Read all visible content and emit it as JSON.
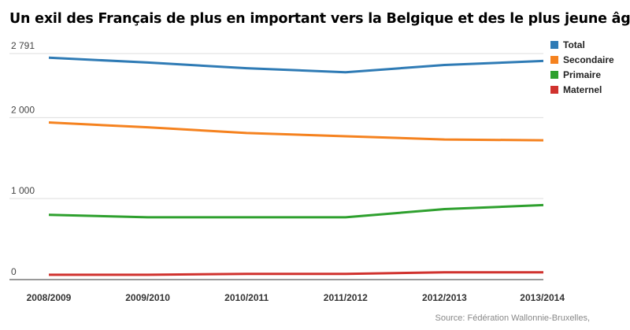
{
  "title": "Un exil des Français de plus en important vers la Belgique et des le plus jeune âge !",
  "source": "Source: Fédération Wallonnie-Bruxelles,",
  "chart_data": {
    "type": "line",
    "categories": [
      "2008/2009",
      "2009/2010",
      "2010/2011",
      "2011/2012",
      "2012/2013",
      "2013/2014"
    ],
    "ylim": [
      0,
      2791
    ],
    "yticks": [
      0,
      1000,
      2000,
      2791
    ],
    "ytick_labels": [
      "0",
      "1 000",
      "2 000",
      "2 791"
    ],
    "grid": true,
    "legend_position": "right",
    "series": [
      {
        "name": "Total",
        "color": "#2f7bb5",
        "values": [
          2740,
          2680,
          2610,
          2560,
          2650,
          2700
        ]
      },
      {
        "name": "Secondaire",
        "color": "#f5821f",
        "values": [
          1940,
          1880,
          1810,
          1770,
          1730,
          1720
        ]
      },
      {
        "name": "Primaire",
        "color": "#2ea02e",
        "values": [
          800,
          770,
          770,
          770,
          870,
          920
        ]
      },
      {
        "name": "Maternel",
        "color": "#d0322e",
        "values": [
          60,
          60,
          70,
          70,
          90,
          90
        ]
      }
    ]
  }
}
